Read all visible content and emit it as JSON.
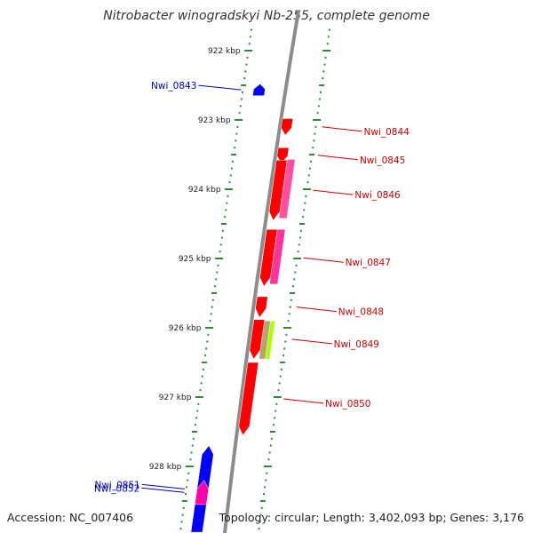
{
  "title": "Nitrobacter winogradskyi Nb-255, complete genome",
  "footer": {
    "accession": "Accession: NC_007406",
    "topology": "Topology: circular; Length: 3,402,093 bp; Genes: 3,176"
  },
  "colors": {
    "axis": "#8c8c8c",
    "tick": "#2e8b2e",
    "forward_label": "#cc0000",
    "reverse_label": "#0000cc"
  },
  "scale": {
    "unit": "kbp",
    "ticks": [
      {
        "kbp": 922,
        "label": "922 kbp"
      },
      {
        "kbp": 923,
        "label": "923 kbp"
      },
      {
        "kbp": 924,
        "label": "924 kbp"
      },
      {
        "kbp": 925,
        "label": "925 kbp"
      },
      {
        "kbp": 926,
        "label": "926 kbp"
      },
      {
        "kbp": 927,
        "label": "927 kbp"
      },
      {
        "kbp": 928,
        "label": "928 kbp"
      }
    ]
  },
  "genes": [
    {
      "id": "g1",
      "label": "Nwi_0843",
      "strand": "reverse",
      "color": "#0000ff",
      "start": 922.48,
      "end": 922.65
    },
    {
      "id": "g2",
      "label": "Nwi_0844",
      "strand": "forward",
      "color": "#ff0000",
      "start": 922.98,
      "end": 923.22
    },
    {
      "id": "g3",
      "label": "Nwi_0845",
      "strand": "forward",
      "color": "#ff0000",
      "start": 923.4,
      "end": 923.62
    },
    {
      "id": "g4",
      "label": "Nwi_0846",
      "strand": "forward",
      "color": "#ff0000",
      "start": 923.58,
      "end": 924.45
    },
    {
      "id": "g5",
      "label": "Nwi_0847",
      "strand": "forward",
      "color": "#ff0000",
      "start": 924.58,
      "end": 925.4
    },
    {
      "id": "g6",
      "label": "Nwi_0848",
      "strand": "forward",
      "color": "#ff0000",
      "start": 925.55,
      "end": 925.85
    },
    {
      "id": "g7",
      "label": "Nwi_0849",
      "strand": "forward",
      "color": "#ff0000",
      "start": 925.88,
      "end": 926.45
    },
    {
      "id": "g8",
      "label": "Nwi_0850",
      "strand": "forward",
      "color": "#ff0000",
      "start": 926.5,
      "end": 927.55
    },
    {
      "id": "g9",
      "label": "Nwi_0851",
      "strand": "reverse",
      "color": "#0000ff",
      "start": 927.7,
      "end": 928.95
    },
    {
      "id": "g10",
      "label": "Nwi_0852",
      "strand": "reverse",
      "color": "#ff00aa",
      "start": 928.2,
      "end": 928.55
    }
  ],
  "features": [
    {
      "id": "f1",
      "color": "#ff4f9f",
      "start": 923.57,
      "end": 924.42
    },
    {
      "id": "f2",
      "color": "#ff3399",
      "start": 924.58,
      "end": 925.37
    },
    {
      "id": "f3",
      "color": "#b8a36a",
      "start": 925.9,
      "end": 926.45
    },
    {
      "id": "f4",
      "color": "#aaff00",
      "start": 925.9,
      "end": 926.45
    }
  ]
}
